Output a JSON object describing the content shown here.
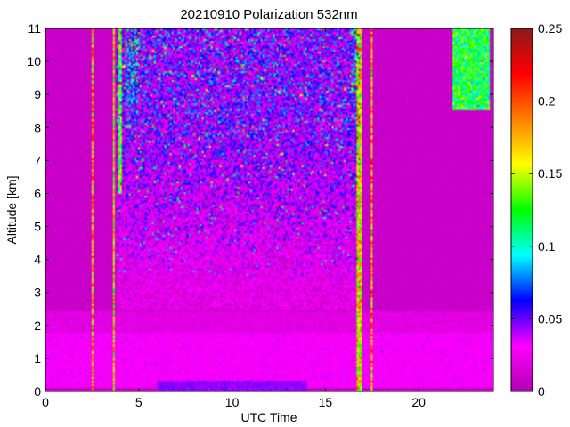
{
  "chart_data": {
    "type": "heatmap",
    "title": "20210910 Polarization 532nm",
    "xlabel": "UTC Time",
    "ylabel": "Altitude [km]",
    "xlim": [
      0,
      24
    ],
    "ylim": [
      0,
      11
    ],
    "x_ticks": [
      0,
      5,
      10,
      15,
      20
    ],
    "y_ticks": [
      0,
      1,
      2,
      3,
      4,
      5,
      6,
      7,
      8,
      9,
      10,
      11
    ],
    "colorbar": {
      "range": [
        0,
        0.25
      ],
      "ticks": [
        0,
        0.05,
        0.1,
        0.15,
        0.2,
        0.25
      ],
      "tick_labels": [
        "0",
        "0.05",
        "0.1",
        "0.15",
        "0.2",
        "0.25"
      ],
      "colors": [
        "#b000b0",
        "#ff00ff",
        "#0000ff",
        "#00ffff",
        "#00ff00",
        "#ffff00",
        "#ff8000",
        "#ff0000",
        "#8b1a1a"
      ]
    },
    "background_value": 0.01,
    "data_extent_x": [
      0,
      24
    ],
    "features": [
      {
        "label": "noisy region",
        "x": [
          3.8,
          16.8
        ],
        "y": [
          2.5,
          11
        ],
        "value": 0.08
      },
      {
        "label": "noisy region",
        "x": [
          4.3,
          5.0
        ],
        "y": [
          6,
          11
        ],
        "value": 0.12
      },
      {
        "label": "noisy region",
        "x": [
          16.4,
          16.9
        ],
        "y": [
          6,
          11
        ],
        "value": 0.12
      },
      {
        "label": "boundary layer",
        "x": [
          0,
          24
        ],
        "y": [
          0.1,
          1.8
        ],
        "value": 0.03
      },
      {
        "label": "near-surface layer",
        "x": [
          6,
          14
        ],
        "y": [
          0,
          0.35
        ],
        "value": 0.045
      },
      {
        "label": "high-value column",
        "x": [
          2.5,
          2.6
        ],
        "y": [
          0,
          11
        ],
        "value": 0.22
      },
      {
        "label": "high-value column",
        "x": [
          3.65,
          3.75
        ],
        "y": [
          0,
          11
        ],
        "value": 0.2
      },
      {
        "label": "high-value column",
        "x": [
          3.95,
          4.05
        ],
        "y": [
          6,
          11
        ],
        "value": 0.16
      },
      {
        "label": "high-value column",
        "x": [
          16.7,
          16.95
        ],
        "y": [
          0,
          11
        ],
        "value": 0.2
      },
      {
        "label": "high-value column",
        "x": [
          17.45,
          17.55
        ],
        "y": [
          0,
          11
        ],
        "value": 0.22
      },
      {
        "label": "upper-right cloud",
        "x": [
          21.8,
          23.8
        ],
        "y": [
          8.5,
          11
        ],
        "value": 0.15
      }
    ]
  }
}
